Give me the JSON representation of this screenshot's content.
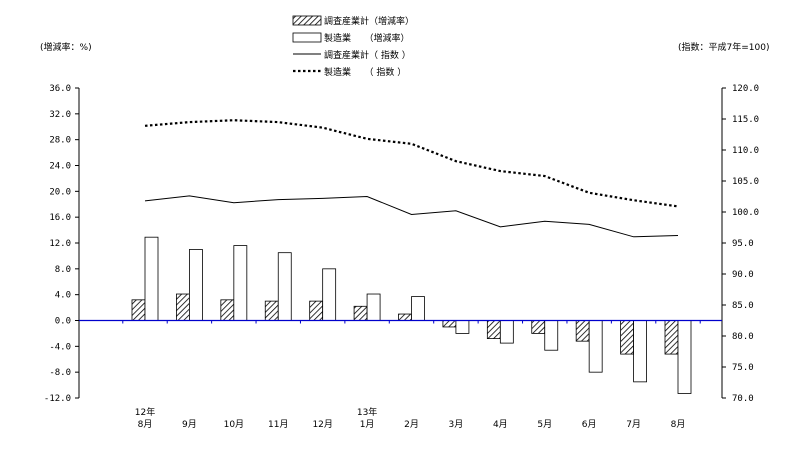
{
  "chart_data": {
    "type": "bar",
    "left_unit_label": "(増減率：%)",
    "right_unit_label": "(指数：平成7年=100)",
    "categories": [
      "8月",
      "9月",
      "10月",
      "11月",
      "12月",
      "1月",
      "2月",
      "3月",
      "4月",
      "5月",
      "6月",
      "7月",
      "8月"
    ],
    "year_markers": [
      {
        "index": 0,
        "label": "12年"
      },
      {
        "index": 5,
        "label": "13年"
      }
    ],
    "ylim_left": [
      -12.0,
      36.0
    ],
    "yticks_left": [
      "36.0",
      "32.0",
      "28.0",
      "24.0",
      "20.0",
      "16.0",
      "12.0",
      "8.0",
      "4.0",
      "0.0",
      "-4.0",
      "-8.0",
      "-12.0"
    ],
    "ylim_right": [
      70.0,
      120.0
    ],
    "yticks_right": [
      "120.0",
      "115.0",
      "110.0",
      "105.0",
      "100.0",
      "95.0",
      "90.0",
      "85.0",
      "80.0",
      "75.0",
      "70.0"
    ],
    "series": [
      {
        "name": "調査産業計（増減率）",
        "kind": "bar",
        "style": "hatched",
        "axis": "left",
        "values": [
          3.2,
          4.1,
          3.2,
          3.0,
          3.0,
          2.2,
          1.0,
          -1.0,
          -2.8,
          -2.0,
          -3.2,
          -5.2,
          -5.2
        ]
      },
      {
        "name": "製造業　　（増減率）",
        "kind": "bar",
        "style": "open",
        "axis": "left",
        "values": [
          12.9,
          11.0,
          11.6,
          10.5,
          8.0,
          4.1,
          3.7,
          -2.0,
          -3.5,
          -4.6,
          -8.0,
          -9.5,
          -11.3
        ]
      },
      {
        "name": "調査産業計（ 指数 ）",
        "kind": "line",
        "style": "solid",
        "axis": "right",
        "values": [
          101.8,
          102.6,
          101.5,
          102.0,
          102.2,
          102.5,
          99.6,
          100.2,
          97.6,
          98.5,
          98.0,
          96.0,
          96.2
        ]
      },
      {
        "name": "製造業　　（ 指数 ）",
        "kind": "line",
        "style": "dotted",
        "axis": "right",
        "values": [
          113.9,
          114.5,
          114.8,
          114.5,
          113.6,
          111.8,
          111.0,
          108.2,
          106.6,
          105.8,
          103.1,
          101.9,
          100.9
        ]
      }
    ],
    "grid": false,
    "legend_position": "top-center"
  }
}
